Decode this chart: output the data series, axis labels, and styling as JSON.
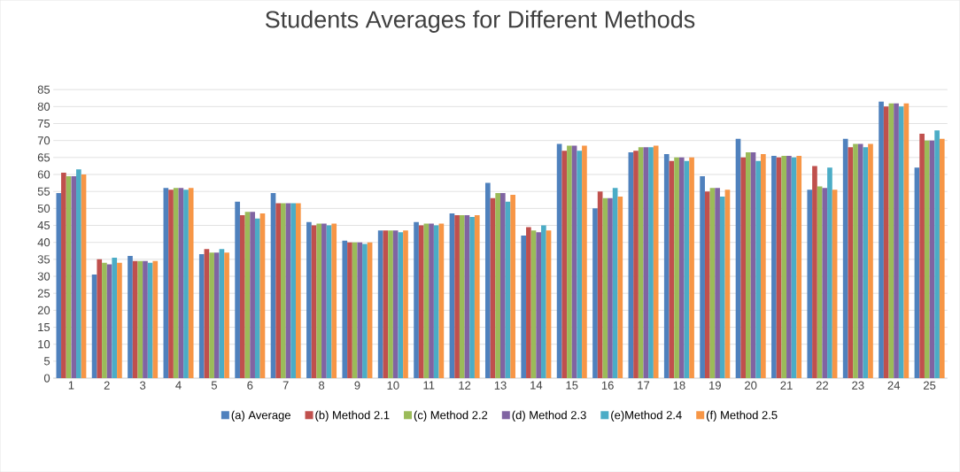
{
  "chart_data": {
    "type": "bar",
    "title": "Students Averages for Different Methods",
    "categories": [
      "1",
      "2",
      "3",
      "4",
      "5",
      "6",
      "7",
      "8",
      "9",
      "10",
      "11",
      "12",
      "13",
      "14",
      "15",
      "16",
      "17",
      "18",
      "19",
      "20",
      "21",
      "22",
      "23",
      "24",
      "25"
    ],
    "series": [
      {
        "name": "(a) Average",
        "color": "#4f81bd",
        "values": [
          54.5,
          30.5,
          36,
          56,
          36.5,
          52,
          54.5,
          46,
          40.5,
          43.5,
          46,
          48.5,
          57.5,
          42,
          69,
          50,
          66.5,
          66,
          59.5,
          70.5,
          65.5,
          55.5,
          70.5,
          81.5,
          62
        ]
      },
      {
        "name": "(b) Method 2.1",
        "color": "#c0504d",
        "values": [
          60.5,
          35,
          34.5,
          55.5,
          38,
          48,
          51.5,
          45,
          40,
          43.5,
          45,
          48,
          53,
          44.5,
          67,
          55,
          67,
          64,
          55,
          65,
          65,
          62.5,
          68,
          80,
          72
        ]
      },
      {
        "name": "(c) Method 2.2",
        "color": "#9bbb59",
        "values": [
          59.5,
          34,
          34.5,
          56,
          37,
          49,
          51.5,
          45.5,
          40,
          43.5,
          45.5,
          48,
          54.5,
          43.5,
          68.5,
          53,
          68,
          65,
          56,
          66.5,
          65.5,
          56.5,
          69,
          81,
          70
        ]
      },
      {
        "name": "(d) Method 2.3",
        "color": "#8064a2",
        "values": [
          59.5,
          33.5,
          34.5,
          56,
          37,
          49,
          51.5,
          45.5,
          40,
          43.5,
          45.5,
          48,
          54.5,
          43,
          68.5,
          53,
          68,
          65,
          56,
          66.5,
          65.5,
          56,
          69,
          81,
          70
        ]
      },
      {
        "name": "(e)Method 2.4",
        "color": "#4bacc6",
        "values": [
          61.5,
          35.5,
          34,
          55.5,
          38,
          47,
          51.5,
          45,
          39.5,
          43,
          45,
          47.5,
          52,
          45,
          67,
          56,
          68,
          64,
          53.5,
          64,
          65,
          62,
          68,
          80,
          73
        ]
      },
      {
        "name": "(f) Method 2.5",
        "color": "#f79646",
        "values": [
          60,
          34,
          34.5,
          56,
          37,
          48.5,
          51.5,
          45.5,
          40,
          43.5,
          45.5,
          48,
          54,
          43.5,
          68.5,
          53.5,
          68.5,
          65,
          55.5,
          66,
          65.5,
          55.5,
          69,
          81,
          70.5
        ]
      }
    ],
    "ylim": [
      0,
      85
    ],
    "yticks": [
      0,
      5,
      10,
      15,
      20,
      25,
      30,
      35,
      40,
      45,
      50,
      55,
      60,
      65,
      70,
      75,
      80,
      85
    ],
    "grid": "y",
    "legend": "bottom"
  }
}
